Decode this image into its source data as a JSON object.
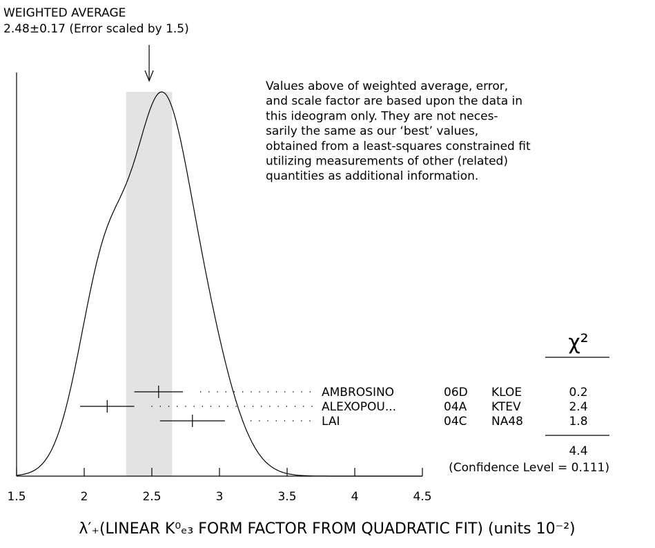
{
  "chart_data": {
    "type": "ideogram",
    "average_title": "WEIGHTED AVERAGE",
    "average": {
      "value": 2.48,
      "error": 0.17,
      "label": "2.48±0.17 (Error scaled by 1.5)"
    },
    "note": [
      "Values above of weighted average, error,",
      "and scale factor are based upon the data in",
      "this ideogram only.  They are not neces-",
      "sarily the same as our ‘best’ values,",
      "obtained from a least-squares constrained fit",
      "utilizing measurements of other (related)",
      "quantities as additional information."
    ],
    "chi2_header": "χ²",
    "measurements": [
      {
        "name": "AMBROSINO",
        "code": "06D",
        "experiment": "KLOE",
        "value": 2.55,
        "error": 0.18,
        "chi2": 0.2
      },
      {
        "name": "ALEXOPOU...",
        "code": "04A",
        "experiment": "KTEV",
        "value": 2.17,
        "error": 0.2,
        "chi2": 2.4
      },
      {
        "name": "LAI",
        "code": "04C",
        "experiment": "NA48",
        "value": 2.8,
        "error": 0.24,
        "chi2": 1.8
      }
    ],
    "chi2_total": 4.4,
    "confidence_level": "(Confidence Level = 0.111)",
    "xlabel": "λ′₊(LINEAR K⁰ₑ₃ FORM FACTOR FROM QUADRATIC FIT) (units 10⁻²)",
    "xlim": [
      1.5,
      4.5
    ],
    "xticks": [
      1.5,
      2,
      2.5,
      3,
      3.5,
      4,
      4.5
    ]
  }
}
